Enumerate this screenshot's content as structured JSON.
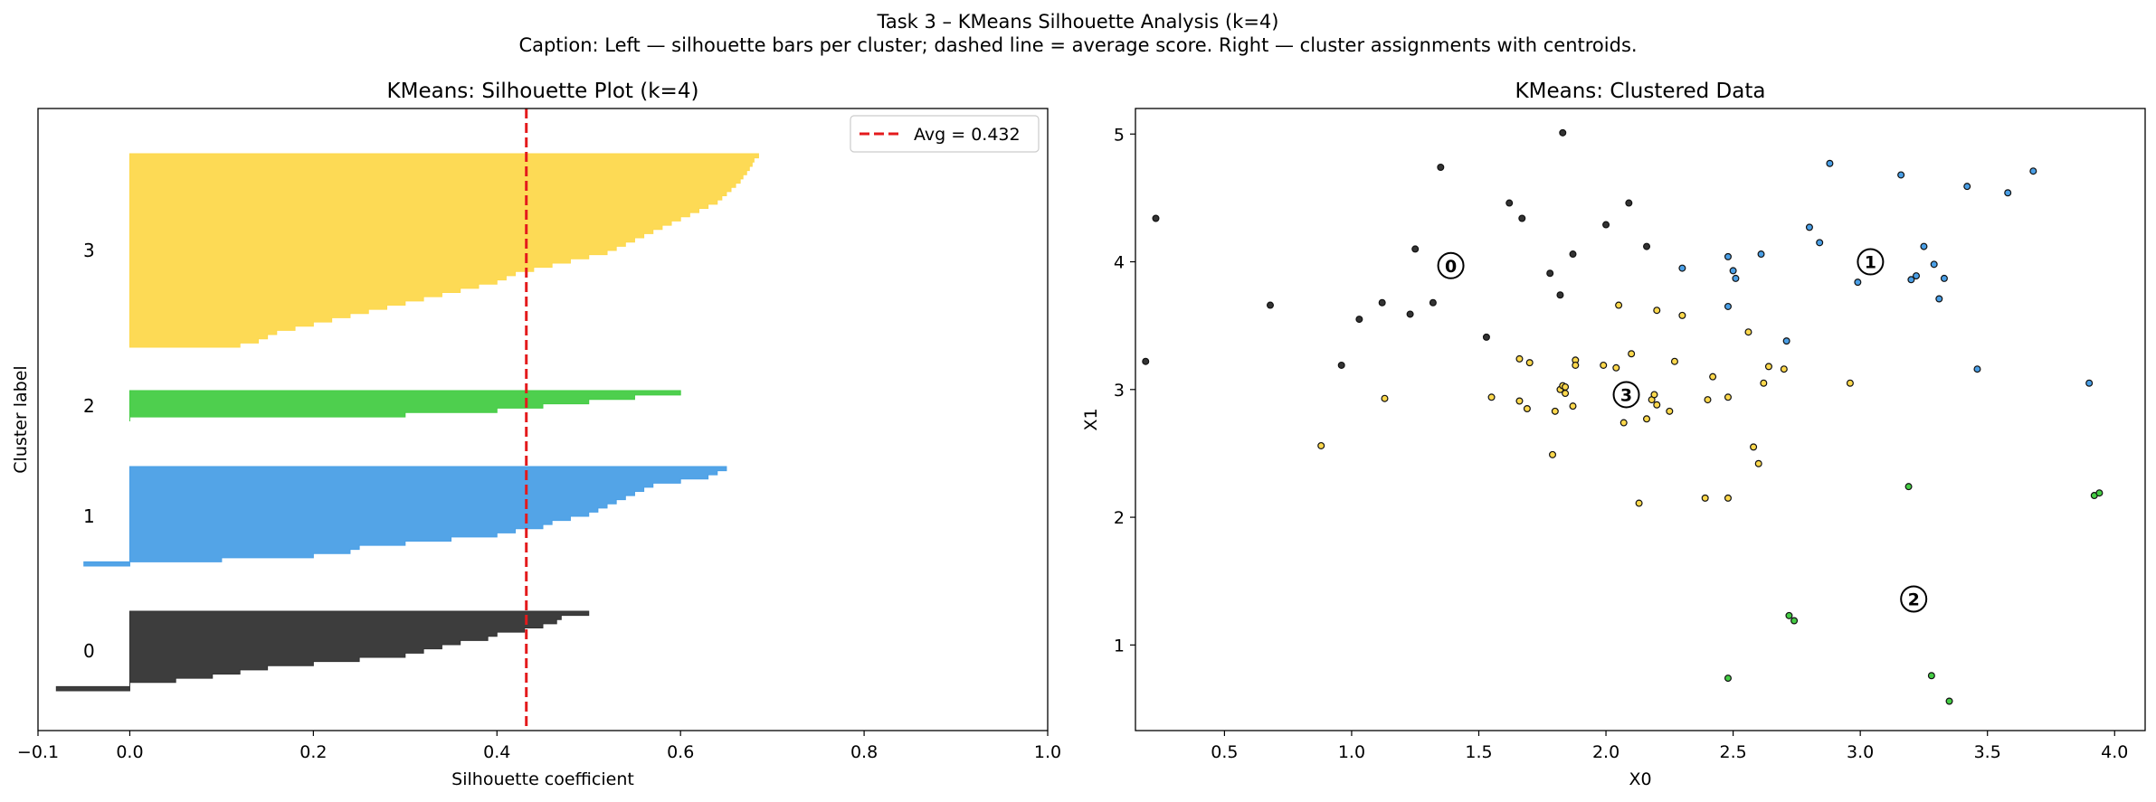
{
  "figure": {
    "suptitle": "Task 3 – KMeans Silhouette Analysis (k=4)",
    "caption": "Caption: Left — silhouette bars per cluster; dashed line = average score. Right — cluster assignments with centroids."
  },
  "colors": {
    "cluster_0": "#333333",
    "cluster_1": "#4a9fe6",
    "cluster_2": "#44cc44",
    "cluster_3": "#fdd84c",
    "avg_line": "#e41a1c"
  },
  "chart_data": [
    {
      "type": "area",
      "title": "KMeans: Silhouette Plot (k=4)",
      "xlabel": "Silhouette coefficient",
      "ylabel": "Cluster label",
      "xlim": [
        -0.1,
        1.0
      ],
      "xticks": [
        "−0.1",
        "0.0",
        "0.2",
        "0.4",
        "0.6",
        "0.8",
        "1.0"
      ],
      "xtick_values": [
        -0.1,
        0.0,
        0.2,
        0.4,
        0.6,
        0.8,
        1.0
      ],
      "grid": false,
      "legend": {
        "position": "top-right",
        "entries": [
          "Avg = 0.432"
        ]
      },
      "avg_score": 0.432,
      "clusters": [
        {
          "label": "0",
          "size": 19,
          "values": [
            0.5,
            0.47,
            0.465,
            0.45,
            0.43,
            0.4,
            0.39,
            0.36,
            0.34,
            0.32,
            0.3,
            0.25,
            0.2,
            0.15,
            0.12,
            0.09,
            0.05,
            0.0,
            -0.08
          ]
        },
        {
          "label": "1",
          "size": 24,
          "values": [
            0.65,
            0.64,
            0.63,
            0.6,
            0.57,
            0.56,
            0.55,
            0.54,
            0.53,
            0.52,
            0.51,
            0.5,
            0.48,
            0.46,
            0.45,
            0.42,
            0.4,
            0.35,
            0.3,
            0.25,
            0.24,
            0.2,
            0.1,
            -0.05
          ]
        },
        {
          "label": "2",
          "size": 7,
          "values": [
            0.6,
            0.55,
            0.5,
            0.45,
            0.4,
            0.3,
            0.0
          ]
        },
        {
          "label": "3",
          "size": 46,
          "values": [
            0.685,
            0.68,
            0.678,
            0.675,
            0.672,
            0.668,
            0.665,
            0.66,
            0.655,
            0.65,
            0.645,
            0.64,
            0.63,
            0.62,
            0.61,
            0.6,
            0.59,
            0.58,
            0.57,
            0.56,
            0.55,
            0.54,
            0.53,
            0.52,
            0.5,
            0.48,
            0.46,
            0.44,
            0.42,
            0.41,
            0.4,
            0.38,
            0.36,
            0.34,
            0.32,
            0.3,
            0.28,
            0.26,
            0.24,
            0.22,
            0.2,
            0.18,
            0.16,
            0.15,
            0.14,
            0.12
          ]
        }
      ]
    },
    {
      "type": "scatter",
      "title": "KMeans: Clustered Data",
      "xlabel": "X0",
      "ylabel": "X1",
      "xlim": [
        0.15,
        4.12
      ],
      "ylim": [
        0.33,
        5.2
      ],
      "xticks": [
        "0.5",
        "1.0",
        "1.5",
        "2.0",
        "2.5",
        "3.0",
        "3.5",
        "4.0"
      ],
      "xtick_values": [
        0.5,
        1.0,
        1.5,
        2.0,
        2.5,
        3.0,
        3.5,
        4.0
      ],
      "yticks": [
        "1",
        "2",
        "3",
        "4",
        "5"
      ],
      "ytick_values": [
        1,
        2,
        3,
        4,
        5
      ],
      "grid": false,
      "series": [
        {
          "cluster": 0,
          "points": [
            [
              0.23,
              4.34
            ],
            [
              0.19,
              3.22
            ],
            [
              0.68,
              3.66
            ],
            [
              0.96,
              3.19
            ],
            [
              1.03,
              3.55
            ],
            [
              1.12,
              3.68
            ],
            [
              1.23,
              3.59
            ],
            [
              1.25,
              4.1
            ],
            [
              1.32,
              3.68
            ],
            [
              1.35,
              4.74
            ],
            [
              1.53,
              3.41
            ],
            [
              1.62,
              4.46
            ],
            [
              1.67,
              4.34
            ],
            [
              1.78,
              3.91
            ],
            [
              1.82,
              3.74
            ],
            [
              1.83,
              5.01
            ],
            [
              1.87,
              4.06
            ],
            [
              2.0,
              4.29
            ],
            [
              2.09,
              4.46
            ],
            [
              2.16,
              4.12
            ]
          ]
        },
        {
          "cluster": 1,
          "points": [
            [
              2.3,
              3.95
            ],
            [
              2.48,
              4.04
            ],
            [
              2.5,
              3.93
            ],
            [
              2.51,
              3.87
            ],
            [
              2.48,
              3.65
            ],
            [
              2.61,
              4.06
            ],
            [
              2.71,
              3.38
            ],
            [
              2.8,
              4.27
            ],
            [
              2.84,
              4.15
            ],
            [
              2.88,
              4.77
            ],
            [
              2.99,
              3.84
            ],
            [
              3.16,
              4.68
            ],
            [
              3.2,
              3.86
            ],
            [
              3.22,
              3.89
            ],
            [
              3.25,
              4.12
            ],
            [
              3.29,
              3.98
            ],
            [
              3.31,
              3.71
            ],
            [
              3.33,
              3.87
            ],
            [
              3.42,
              4.59
            ],
            [
              3.46,
              3.16
            ],
            [
              3.58,
              4.54
            ],
            [
              3.68,
              4.71
            ],
            [
              3.9,
              3.05
            ]
          ]
        },
        {
          "cluster": 2,
          "points": [
            [
              2.48,
              0.74
            ],
            [
              2.72,
              1.23
            ],
            [
              2.74,
              1.19
            ],
            [
              3.19,
              2.24
            ],
            [
              3.28,
              0.76
            ],
            [
              3.35,
              0.56
            ],
            [
              3.92,
              2.17
            ],
            [
              3.94,
              2.19
            ]
          ]
        },
        {
          "cluster": 3,
          "points": [
            [
              0.88,
              2.56
            ],
            [
              1.13,
              2.93
            ],
            [
              1.55,
              2.94
            ],
            [
              1.66,
              3.24
            ],
            [
              1.7,
              3.21
            ],
            [
              1.66,
              2.91
            ],
            [
              1.69,
              2.85
            ],
            [
              1.79,
              2.49
            ],
            [
              1.8,
              2.83
            ],
            [
              1.82,
              3.0
            ],
            [
              1.83,
              3.03
            ],
            [
              1.84,
              3.02
            ],
            [
              1.84,
              2.97
            ],
            [
              1.87,
              2.87
            ],
            [
              1.88,
              3.23
            ],
            [
              1.88,
              3.19
            ],
            [
              1.99,
              3.19
            ],
            [
              2.04,
              3.17
            ],
            [
              2.05,
              3.66
            ],
            [
              2.07,
              2.74
            ],
            [
              2.1,
              3.28
            ],
            [
              2.1,
              2.99
            ],
            [
              2.13,
              2.11
            ],
            [
              2.16,
              2.77
            ],
            [
              2.18,
              2.92
            ],
            [
              2.19,
              2.96
            ],
            [
              2.2,
              2.88
            ],
            [
              2.2,
              3.62
            ],
            [
              2.25,
              2.83
            ],
            [
              2.27,
              3.22
            ],
            [
              2.3,
              3.58
            ],
            [
              2.39,
              2.15
            ],
            [
              2.4,
              2.92
            ],
            [
              2.42,
              3.1
            ],
            [
              2.48,
              2.15
            ],
            [
              2.48,
              2.94
            ],
            [
              2.56,
              3.45
            ],
            [
              2.58,
              2.55
            ],
            [
              2.6,
              2.42
            ],
            [
              2.62,
              3.05
            ],
            [
              2.64,
              3.18
            ],
            [
              2.7,
              3.16
            ],
            [
              2.96,
              3.05
            ]
          ]
        }
      ],
      "centroids": [
        {
          "label": "0",
          "x": 1.39,
          "y": 3.97
        },
        {
          "label": "1",
          "x": 3.04,
          "y": 4.0
        },
        {
          "label": "2",
          "x": 3.21,
          "y": 1.36
        },
        {
          "label": "3",
          "x": 2.08,
          "y": 2.96
        }
      ]
    }
  ]
}
